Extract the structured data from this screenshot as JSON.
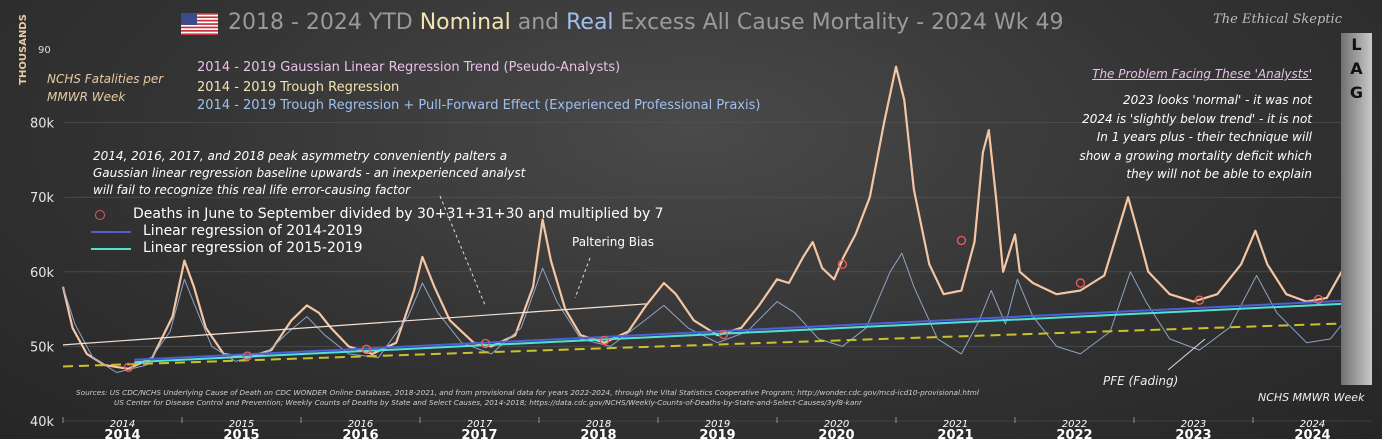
{
  "header": {
    "title_pre": "2018 - 2024 YTD ",
    "title_nominal": "Nominal",
    "title_and": " and ",
    "title_real": "Real",
    "title_post": " Excess All Cause Mortality - 2024 Wk 49",
    "brand": "The Ethical Skeptic",
    "lag_letters": [
      "L",
      "A",
      "G"
    ]
  },
  "annotations": {
    "y_axis_title": "THOUSANDS",
    "y_top_value": "90",
    "nchs_label": "NCHS Fatalities per MMWR Week",
    "trend_gaussian": "2014 - 2019 Gaussian Linear Regression Trend (Pseudo-Analysts)",
    "trend_trough": "2014 - 2019 Trough Regression",
    "trend_pullforward": "2014 - 2019 Trough Regression + Pull-Forward Effect (Experienced Professional Praxis)",
    "problem_title": "The Problem Facing These 'Analysts'",
    "problem_lines": [
      "2023  looks 'normal' - it was not",
      "2024 is 'slightly below trend' - it is not",
      "In 1 years plus - their technique will",
      "show a growing mortality deficit which",
      "they will not be able to explain"
    ],
    "asymmetry_lines": [
      "2014,  2016,  2017,  and 2018  peak asymmetry conveniently palters a",
      "Gaussian linear regression baseline upwards - an inexperienced analyst",
      "will fail to recognize this real life error-causing factor"
    ],
    "paltering_bias": "Paltering Bias",
    "pfe_fading": "PFE (Fading)",
    "mmwr_week": "NCHS MMWR Week",
    "sources_lines": [
      "Sources:  US CDC/NCHS Underlying  Cause of Death on CDC WONDER Online Database, 2018-2021, and from provisional data for years 2022-2024, through the Vital Statistics Cooperative Program; http://wonder.cdc.gov/mcd-icd10-provisional.html",
      "US Center for Disease Control and Prevention; Weekly  Counts of Deaths by State and Select Causes, 2014-2018; https://data.cdc.gov/NCHS/Weekly-Counts-of-Deaths-by-State-and-Select-Causes/3yf8-kanr"
    ]
  },
  "legend": {
    "items": [
      "Deaths in June to September divided by 30+31+31+30 and multiplied by 7",
      "Linear regression of 2014-2019",
      "Linear regression of 2015-2019"
    ]
  },
  "colors": {
    "nominal": "#f4c6a4",
    "real": "#8fa2c6",
    "gaussian": "#f6e1d2",
    "reg2014": "#4d5fd4",
    "reg2015": "#4fe0d8",
    "trough": "#c9c22c",
    "summer_marker": "#e45b5b"
  },
  "chart_data": {
    "type": "line",
    "ylabel": "THOUSANDS",
    "ylim": [
      40000,
      90000
    ],
    "y_ticks": [
      "40k",
      "50k",
      "60k",
      "70k",
      "80k"
    ],
    "xlim": [
      2014.0,
      2025.0
    ],
    "x_tick_labels": [
      "2014",
      "2015",
      "2016",
      "2017",
      "2018",
      "2019",
      "2020",
      "2021",
      "2022",
      "2023",
      "2024"
    ],
    "legend_position": "upper-left",
    "series": [
      {
        "key": "nominal",
        "points": [
          [
            2014.0,
            58000
          ],
          [
            2014.08,
            52500
          ],
          [
            2014.2,
            49000
          ],
          [
            2014.35,
            47500
          ],
          [
            2014.55,
            47000
          ],
          [
            2014.75,
            48500
          ],
          [
            2014.92,
            54000
          ],
          [
            2015.02,
            61500
          ],
          [
            2015.1,
            58000
          ],
          [
            2015.2,
            52500
          ],
          [
            2015.35,
            49000
          ],
          [
            2015.55,
            48500
          ],
          [
            2015.75,
            49500
          ],
          [
            2015.92,
            53500
          ],
          [
            2016.05,
            55500
          ],
          [
            2016.15,
            54500
          ],
          [
            2016.25,
            52500
          ],
          [
            2016.4,
            50000
          ],
          [
            2016.6,
            49000
          ],
          [
            2016.8,
            50500
          ],
          [
            2016.95,
            57500
          ],
          [
            2017.02,
            62000
          ],
          [
            2017.12,
            58000
          ],
          [
            2017.25,
            53500
          ],
          [
            2017.45,
            50500
          ],
          [
            2017.6,
            50000
          ],
          [
            2017.8,
            51500
          ],
          [
            2017.95,
            58000
          ],
          [
            2018.03,
            67000
          ],
          [
            2018.1,
            61500
          ],
          [
            2018.22,
            55000
          ],
          [
            2018.35,
            51500
          ],
          [
            2018.55,
            50500
          ],
          [
            2018.75,
            52000
          ],
          [
            2018.9,
            55500
          ],
          [
            2019.05,
            58500
          ],
          [
            2019.15,
            57000
          ],
          [
            2019.3,
            53500
          ],
          [
            2019.5,
            51500
          ],
          [
            2019.7,
            52500
          ],
          [
            2019.85,
            55500
          ],
          [
            2020.0,
            59000
          ],
          [
            2020.1,
            58500
          ],
          [
            2020.22,
            62000
          ],
          [
            2020.3,
            64000
          ],
          [
            2020.38,
            60500
          ],
          [
            2020.48,
            59000
          ],
          [
            2020.56,
            62000
          ],
          [
            2020.66,
            65000
          ],
          [
            2020.78,
            70000
          ],
          [
            2020.9,
            80000
          ],
          [
            2021.0,
            87500
          ],
          [
            2021.07,
            83000
          ],
          [
            2021.15,
            71000
          ],
          [
            2021.28,
            61000
          ],
          [
            2021.4,
            57000
          ],
          [
            2021.55,
            57500
          ],
          [
            2021.66,
            64000
          ],
          [
            2021.73,
            76000
          ],
          [
            2021.78,
            79000
          ],
          [
            2021.84,
            70000
          ],
          [
            2021.9,
            60000
          ],
          [
            2022.0,
            65000
          ],
          [
            2022.04,
            60000
          ],
          [
            2022.15,
            58500
          ],
          [
            2022.35,
            57000
          ],
          [
            2022.55,
            57500
          ],
          [
            2022.75,
            59500
          ],
          [
            2022.95,
            70000
          ],
          [
            2023.02,
            66000
          ],
          [
            2023.12,
            60000
          ],
          [
            2023.3,
            57000
          ],
          [
            2023.5,
            56000
          ],
          [
            2023.7,
            57000
          ],
          [
            2023.9,
            61000
          ],
          [
            2024.02,
            65500
          ],
          [
            2024.12,
            61000
          ],
          [
            2024.28,
            57000
          ],
          [
            2024.45,
            56000
          ],
          [
            2024.62,
            56500
          ],
          [
            2024.78,
            61000
          ],
          [
            2024.88,
            59000
          ],
          [
            2024.95,
            64500
          ]
        ]
      },
      {
        "key": "real",
        "points": [
          [
            2014.0,
            58000
          ],
          [
            2014.1,
            53000
          ],
          [
            2014.25,
            48500
          ],
          [
            2014.45,
            46500
          ],
          [
            2014.7,
            47500
          ],
          [
            2014.9,
            52000
          ],
          [
            2015.02,
            59000
          ],
          [
            2015.12,
            55000
          ],
          [
            2015.25,
            50000
          ],
          [
            2015.45,
            48000
          ],
          [
            2015.7,
            49000
          ],
          [
            2015.9,
            52000
          ],
          [
            2016.05,
            54000
          ],
          [
            2016.2,
            51500
          ],
          [
            2016.4,
            49000
          ],
          [
            2016.65,
            48500
          ],
          [
            2016.9,
            54000
          ],
          [
            2017.02,
            58500
          ],
          [
            2017.15,
            54500
          ],
          [
            2017.35,
            50500
          ],
          [
            2017.6,
            49000
          ],
          [
            2017.85,
            52500
          ],
          [
            2018.03,
            60500
          ],
          [
            2018.15,
            56000
          ],
          [
            2018.35,
            51000
          ],
          [
            2018.6,
            50000
          ],
          [
            2018.85,
            53000
          ],
          [
            2019.05,
            55500
          ],
          [
            2019.25,
            52500
          ],
          [
            2019.5,
            50500
          ],
          [
            2019.75,
            52000
          ],
          [
            2020.0,
            56000
          ],
          [
            2020.15,
            54500
          ],
          [
            2020.35,
            51000
          ],
          [
            2020.55,
            50000
          ],
          [
            2020.75,
            52500
          ],
          [
            2020.95,
            60000
          ],
          [
            2021.05,
            62500
          ],
          [
            2021.15,
            58000
          ],
          [
            2021.35,
            51000
          ],
          [
            2021.55,
            49000
          ],
          [
            2021.7,
            53500
          ],
          [
            2021.8,
            57500
          ],
          [
            2021.92,
            53000
          ],
          [
            2022.02,
            59000
          ],
          [
            2022.15,
            54000
          ],
          [
            2022.35,
            50000
          ],
          [
            2022.55,
            49000
          ],
          [
            2022.8,
            52000
          ],
          [
            2022.97,
            60000
          ],
          [
            2023.1,
            56000
          ],
          [
            2023.3,
            51000
          ],
          [
            2023.55,
            49500
          ],
          [
            2023.8,
            52500
          ],
          [
            2024.03,
            59500
          ],
          [
            2024.2,
            54500
          ],
          [
            2024.45,
            50500
          ],
          [
            2024.65,
            51000
          ],
          [
            2024.85,
            55000
          ],
          [
            2024.97,
            58000
          ]
        ]
      },
      {
        "key": "gaussian",
        "points": [
          [
            2014.0,
            50200
          ],
          [
            2018.9,
            55700
          ]
        ]
      },
      {
        "key": "reg2014",
        "points": [
          [
            2014.6,
            48200
          ],
          [
            2025.0,
            56300
          ]
        ]
      },
      {
        "key": "reg2015",
        "points": [
          [
            2014.6,
            47900
          ],
          [
            2025.0,
            55900
          ]
        ]
      },
      {
        "key": "trough",
        "points": [
          [
            2014.0,
            47300
          ],
          [
            2025.0,
            53200
          ]
        ]
      }
    ],
    "summer_markers": [
      [
        2014.55,
        47200
      ],
      [
        2015.55,
        48700
      ],
      [
        2016.55,
        49600
      ],
      [
        2017.55,
        50400
      ],
      [
        2018.55,
        50800
      ],
      [
        2019.55,
        51600
      ],
      [
        2020.55,
        61000
      ],
      [
        2021.55,
        64200
      ],
      [
        2022.55,
        58500
      ],
      [
        2023.55,
        56200
      ],
      [
        2024.55,
        56300
      ]
    ]
  }
}
